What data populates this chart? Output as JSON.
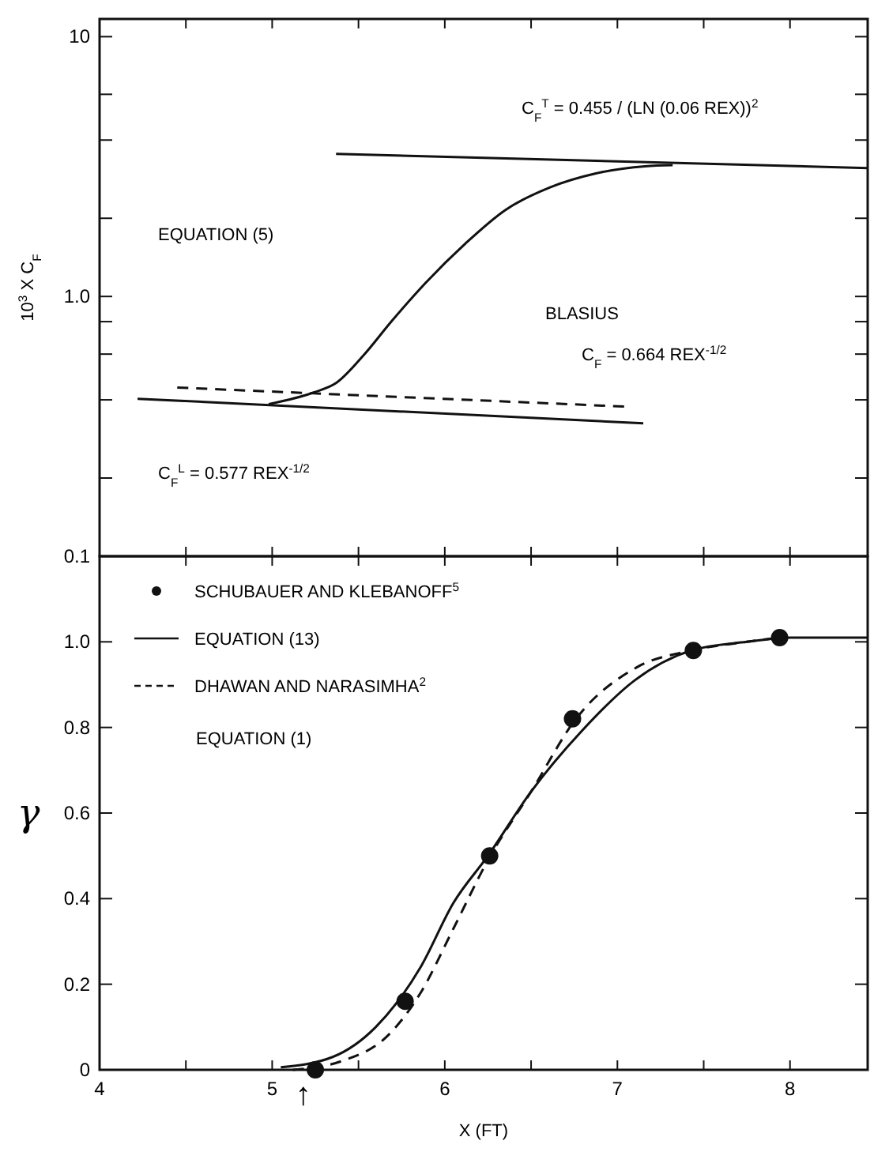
{
  "chart_data": [
    {
      "type": "line",
      "ylabel": "10$^{3}$ X C$_{F}$",
      "log": true,
      "tick_labels": "y",
      "grid": false,
      "xlim": [
        4,
        8.45
      ],
      "ylim": [
        0.1,
        11.7
      ],
      "xticks": [
        4,
        4.5,
        5,
        5.5,
        6,
        6.5,
        7,
        7.5,
        8
      ],
      "yticks": [
        {
          "value": 0.1,
          "label": "0.1"
        },
        {
          "value": 0.2,
          "label": null
        },
        {
          "value": 0.4,
          "label": null
        },
        {
          "value": 0.6,
          "label": null
        },
        {
          "value": 0.8,
          "label": null
        },
        {
          "value": 1,
          "label": "1.0"
        },
        {
          "value": 2,
          "label": null
        },
        {
          "value": 4,
          "label": null
        },
        {
          "value": 6,
          "label": null
        },
        10
      ],
      "annotations": [
        "C$_{F}$$^{T}$ = 0.455 / (LN (0.06 REX))$^{2}$",
        "EQUATION (5)",
        "BLASIUS",
        "C$_{F}$ = 0.664 REX$^{-1/2}$",
        "C$_{F}$$^{L}$ = 0.577 REX$^{-1/2}$"
      ],
      "series": [
        {
          "color": "#111111",
          "line_style": "solid",
          "x": [
            5.37,
            8.45
          ],
          "values": [
            3.54,
            3.12
          ]
        },
        {
          "color": "#111111",
          "line_style": "solid",
          "x": [
            4.22,
            7.15
          ],
          "values": [
            0.404,
            0.325
          ]
        },
        {
          "color": "#111111",
          "line_style": "dashed",
          "x": [
            4.45,
            7.04
          ],
          "values": [
            0.446,
            0.377
          ]
        },
        {
          "color": "#111111",
          "line_style": "solid",
          "x": [
            4.98,
            5.24,
            5.37,
            5.53,
            5.69,
            5.89,
            6.12,
            6.35,
            6.61,
            6.87,
            7.16,
            7.32
          ],
          "values": [
            0.385,
            0.427,
            0.464,
            0.594,
            0.8,
            1.13,
            1.6,
            2.15,
            2.63,
            2.97,
            3.17,
            3.2
          ]
        }
      ]
    },
    {
      "type": "line",
      "xlabel": "X (FT)",
      "ylabel": "γ",
      "legend": "top left",
      "grid": false,
      "xlim": [
        4,
        8.45
      ],
      "ylim": [
        0,
        1.2
      ],
      "xticks": [
        4,
        {
          "value": 4.5,
          "label": null
        },
        5,
        {
          "value": 5.5,
          "label": null
        },
        6,
        {
          "value": 6.5,
          "label": null
        },
        7,
        {
          "value": 7.5,
          "label": null
        },
        8
      ],
      "yticks": [
        0,
        0.2,
        0.4,
        0.6,
        0.8,
        {
          "value": 1,
          "label": "1.0"
        }
      ],
      "annotations": [
        "EQUATION (1)",
        {
          "text": "↑",
          "x": 5.18,
          "y": 0
        }
      ],
      "series": [
        {
          "name": "SCHUBAUER AND KLEBANOFF$^{5}$",
          "type": "scatter",
          "marker": "circle",
          "color": "#111111",
          "x": [
            5.25,
            5.77,
            6.26,
            6.74,
            7.44,
            7.94
          ],
          "values": [
            0.0,
            0.16,
            0.5,
            0.82,
            0.98,
            1.01
          ]
        },
        {
          "name": "EQUATION (13)",
          "color": "#111111",
          "line_style": "solid",
          "x": [
            5.05,
            5.35,
            5.6,
            5.86,
            6.05,
            6.25,
            6.5,
            6.79,
            7.1,
            7.43,
            7.75,
            8.0,
            8.45
          ],
          "values": [
            0.006,
            0.03,
            0.1,
            0.24,
            0.39,
            0.5,
            0.65,
            0.79,
            0.91,
            0.98,
            1.0,
            1.01,
            1.01
          ]
        },
        {
          "name": "DHAWAN AND NARASIMHA$^{2}$",
          "color": "#111111",
          "line_style": "dashed",
          "x": [
            5.12,
            5.4,
            5.67,
            5.86,
            6.05,
            6.25,
            6.5,
            6.76,
            7.11,
            7.43,
            7.75,
            7.94
          ],
          "values": [
            0.0,
            0.02,
            0.08,
            0.18,
            0.33,
            0.49,
            0.65,
            0.82,
            0.94,
            0.98,
            1.0,
            1.01
          ]
        }
      ]
    }
  ]
}
